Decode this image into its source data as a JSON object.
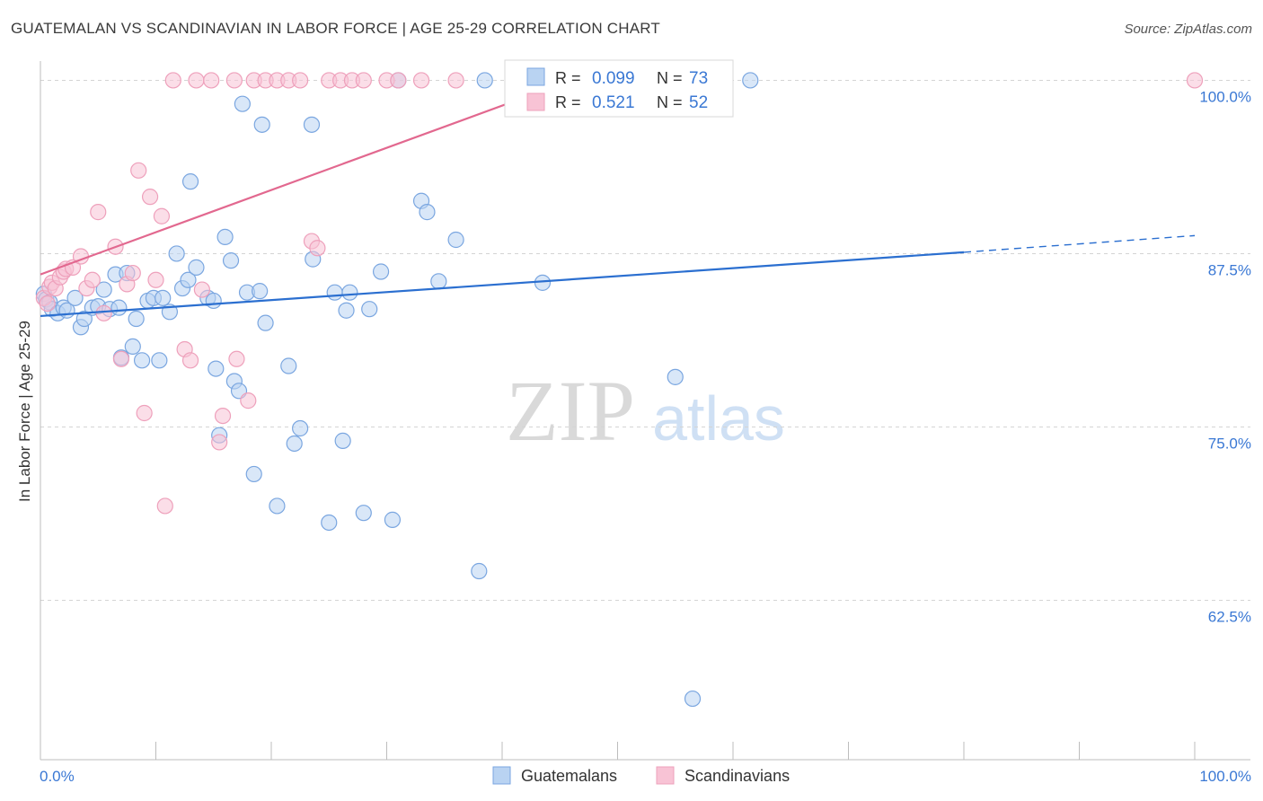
{
  "header": {
    "title": "GUATEMALAN VS SCANDINAVIAN IN LABOR FORCE | AGE 25-29 CORRELATION CHART",
    "source": "Source: ZipAtlas.com"
  },
  "watermark": {
    "zip": "ZIP",
    "atlas": "atlas"
  },
  "colors": {
    "blue_fill": "#b9d3f2",
    "blue_stroke": "#7aa6e0",
    "blue_line": "#2b6fd0",
    "pink_fill": "#f8c3d5",
    "pink_stroke": "#eea0bb",
    "pink_line": "#e2688f",
    "axis_text": "#3a78d4",
    "grid": "#d4d4d4"
  },
  "legend": {
    "rows": [
      {
        "r_label": "R =",
        "r_value": "0.099",
        "n_label": "N =",
        "n_value": "73"
      },
      {
        "r_label": "R =",
        "r_value": "0.521",
        "n_label": "N =",
        "n_value": "52"
      }
    ],
    "bottom": [
      "Guatemalans",
      "Scandinavians"
    ]
  },
  "chart_data": {
    "type": "scatter",
    "xlabel": "",
    "ylabel": "In Labor Force | Age 25-29",
    "xlim": [
      0,
      100
    ],
    "ylim": [
      51,
      101
    ],
    "x_tick_labels": [
      "0.0%",
      "100.0%"
    ],
    "y_ticks": [
      {
        "value": 100.0,
        "label": "100.0%"
      },
      {
        "value": 87.5,
        "label": "87.5%"
      },
      {
        "value": 75.0,
        "label": "75.0%"
      },
      {
        "value": 62.5,
        "label": "62.5%"
      }
    ],
    "grid": "horizontal dashed",
    "legend_position": "top-center",
    "series": [
      {
        "name": "Guatemalans",
        "color": "#b9d3f2",
        "trend": {
          "x": [
            0,
            80
          ],
          "y": [
            83.0,
            87.6
          ],
          "dashed_to": [
            100,
            88.8
          ]
        },
        "points": [
          [
            0.3,
            84.6
          ],
          [
            0.5,
            84.2
          ],
          [
            0.8,
            84.0
          ],
          [
            1.0,
            83.5
          ],
          [
            1.5,
            83.2
          ],
          [
            2.0,
            83.6
          ],
          [
            2.3,
            83.4
          ],
          [
            3.0,
            84.3
          ],
          [
            3.5,
            82.2
          ],
          [
            3.8,
            82.8
          ],
          [
            4.5,
            83.6
          ],
          [
            5.0,
            83.7
          ],
          [
            5.5,
            84.9
          ],
          [
            6.0,
            83.5
          ],
          [
            6.5,
            86.0
          ],
          [
            6.8,
            83.6
          ],
          [
            7.0,
            80.0
          ],
          [
            7.5,
            86.1
          ],
          [
            8.0,
            80.8
          ],
          [
            8.3,
            82.8
          ],
          [
            8.8,
            79.8
          ],
          [
            9.3,
            84.1
          ],
          [
            9.8,
            84.3
          ],
          [
            10.3,
            79.8
          ],
          [
            10.6,
            84.3
          ],
          [
            11.2,
            83.3
          ],
          [
            11.8,
            87.5
          ],
          [
            12.3,
            85.0
          ],
          [
            12.8,
            85.6
          ],
          [
            13.0,
            92.7
          ],
          [
            13.5,
            86.5
          ],
          [
            14.5,
            84.3
          ],
          [
            15.0,
            84.1
          ],
          [
            15.2,
            79.2
          ],
          [
            15.5,
            74.4
          ],
          [
            16.0,
            88.7
          ],
          [
            16.5,
            87.0
          ],
          [
            16.8,
            78.3
          ],
          [
            17.2,
            77.6
          ],
          [
            17.5,
            98.3
          ],
          [
            17.9,
            84.7
          ],
          [
            18.5,
            71.6
          ],
          [
            19.0,
            84.8
          ],
          [
            19.2,
            96.8
          ],
          [
            19.5,
            82.5
          ],
          [
            20.5,
            69.3
          ],
          [
            21.5,
            79.4
          ],
          [
            22.0,
            73.8
          ],
          [
            22.5,
            74.9
          ],
          [
            23.5,
            96.8
          ],
          [
            23.6,
            87.1
          ],
          [
            25.0,
            68.1
          ],
          [
            25.5,
            84.7
          ],
          [
            26.2,
            74.0
          ],
          [
            26.5,
            83.4
          ],
          [
            26.8,
            84.7
          ],
          [
            28.0,
            68.8
          ],
          [
            28.5,
            83.5
          ],
          [
            29.5,
            86.2
          ],
          [
            30.5,
            68.3
          ],
          [
            31.0,
            100.0
          ],
          [
            33.0,
            91.3
          ],
          [
            33.5,
            90.5
          ],
          [
            34.5,
            85.5
          ],
          [
            36.0,
            88.5
          ],
          [
            38.0,
            64.6
          ],
          [
            38.5,
            100.0
          ],
          [
            43.5,
            85.4
          ],
          [
            46.0,
            98.8
          ],
          [
            55.0,
            78.6
          ],
          [
            56.5,
            55.4
          ],
          [
            58.0,
            100.0
          ],
          [
            61.5,
            100.0
          ]
        ]
      },
      {
        "name": "Scandinavians",
        "color": "#f8c3d5",
        "trend": {
          "x": [
            0,
            46
          ],
          "y": [
            86.0,
            100.0
          ]
        },
        "points": [
          [
            0.3,
            84.3
          ],
          [
            0.6,
            83.9
          ],
          [
            0.8,
            85.1
          ],
          [
            1.0,
            85.4
          ],
          [
            1.3,
            85.0
          ],
          [
            1.7,
            85.8
          ],
          [
            2.0,
            86.2
          ],
          [
            2.2,
            86.4
          ],
          [
            2.8,
            86.5
          ],
          [
            3.5,
            87.3
          ],
          [
            4.0,
            85.0
          ],
          [
            4.5,
            85.6
          ],
          [
            5.0,
            90.5
          ],
          [
            5.5,
            83.2
          ],
          [
            6.5,
            88.0
          ],
          [
            7.0,
            79.9
          ],
          [
            7.5,
            85.3
          ],
          [
            8.0,
            86.1
          ],
          [
            8.5,
            93.5
          ],
          [
            9.0,
            76.0
          ],
          [
            9.5,
            91.6
          ],
          [
            10.0,
            85.6
          ],
          [
            10.5,
            90.2
          ],
          [
            10.8,
            69.3
          ],
          [
            11.5,
            100.0
          ],
          [
            12.5,
            80.6
          ],
          [
            13.0,
            79.8
          ],
          [
            13.5,
            100.0
          ],
          [
            14.0,
            84.9
          ],
          [
            14.8,
            100.0
          ],
          [
            15.5,
            73.9
          ],
          [
            15.8,
            75.8
          ],
          [
            16.8,
            100.0
          ],
          [
            17.0,
            79.9
          ],
          [
            18.0,
            76.9
          ],
          [
            18.5,
            100.0
          ],
          [
            19.5,
            100.0
          ],
          [
            20.5,
            100.0
          ],
          [
            21.5,
            100.0
          ],
          [
            22.5,
            100.0
          ],
          [
            23.5,
            88.4
          ],
          [
            24.0,
            87.9
          ],
          [
            25.0,
            100.0
          ],
          [
            26.0,
            100.0
          ],
          [
            27.0,
            100.0
          ],
          [
            28.0,
            100.0
          ],
          [
            30.0,
            100.0
          ],
          [
            31.0,
            100.0
          ],
          [
            33.0,
            100.0
          ],
          [
            36.0,
            100.0
          ],
          [
            42.0,
            100.0
          ],
          [
            100.0,
            100.0
          ]
        ]
      }
    ]
  }
}
